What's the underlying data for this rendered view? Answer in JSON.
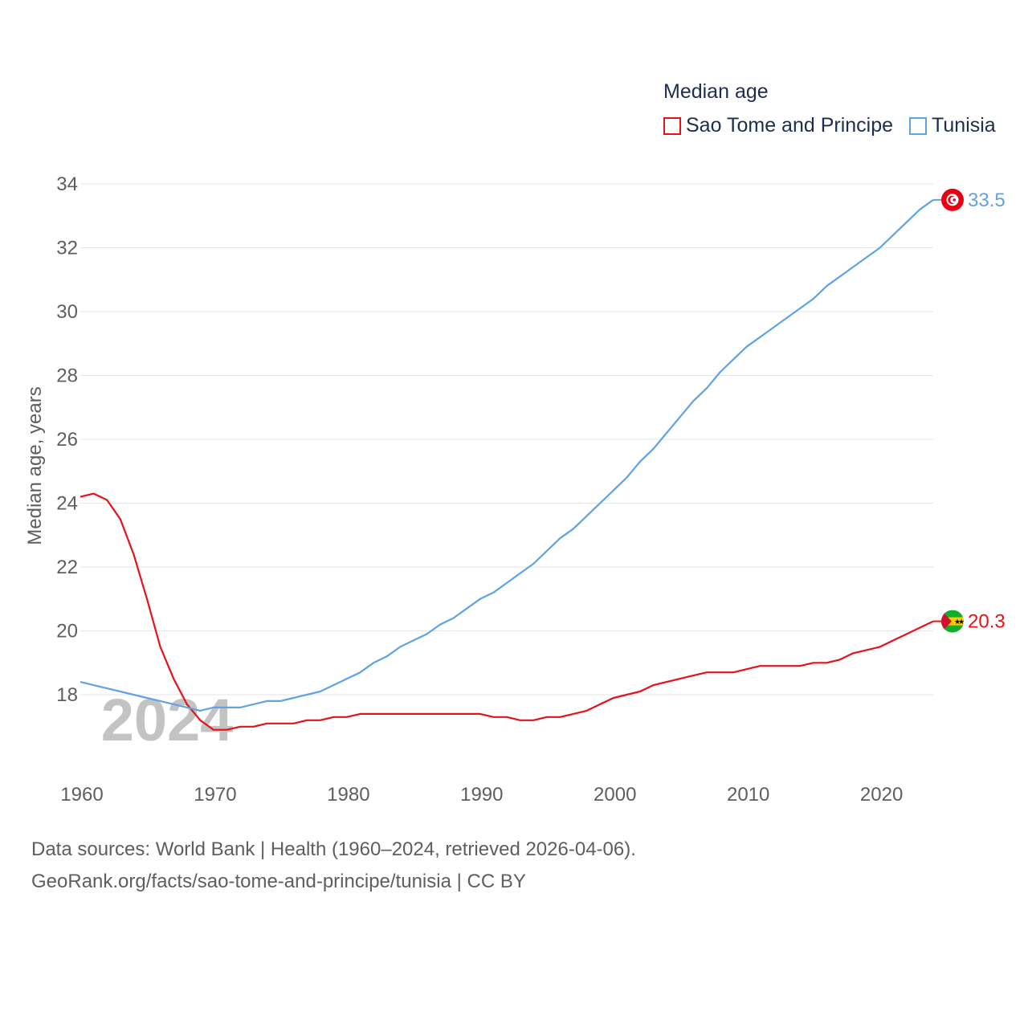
{
  "legend": {
    "title": "Median age",
    "items": [
      {
        "label": "Sao Tome and Principe",
        "color": "#e8111a"
      },
      {
        "label": "Tunisia",
        "color": "#5ea3e4"
      }
    ]
  },
  "footer": {
    "line1": "Data sources: World Bank | Health (1960–2024, retrieved 2026-04-06).",
    "line2": "GeoRank.org/facts/sao-tome-and-principe/tunisia | CC BY"
  },
  "chart_data": {
    "type": "line",
    "title": "Median age",
    "xlabel": "",
    "ylabel": "Median age, years",
    "year_watermark": "2024",
    "xlim": [
      1960,
      2024
    ],
    "ylim": [
      16,
      34.5
    ],
    "xticks": [
      1960,
      1970,
      1980,
      1990,
      2000,
      2010,
      2020
    ],
    "yticks": [
      18,
      20,
      22,
      24,
      26,
      28,
      30,
      32,
      34
    ],
    "grid": true,
    "legend_position": "top-right",
    "series": [
      {
        "name": "Sao Tome and Principe",
        "color": "#e8111a",
        "end_label": "20.3",
        "flag": "sao-tome-flag-icon",
        "x": [
          1960,
          1961,
          1962,
          1963,
          1964,
          1965,
          1966,
          1967,
          1968,
          1969,
          1970,
          1971,
          1972,
          1973,
          1974,
          1975,
          1976,
          1977,
          1978,
          1979,
          1980,
          1981,
          1982,
          1983,
          1984,
          1985,
          1986,
          1987,
          1988,
          1989,
          1990,
          1991,
          1992,
          1993,
          1994,
          1995,
          1996,
          1997,
          1998,
          1999,
          2000,
          2001,
          2002,
          2003,
          2004,
          2005,
          2006,
          2007,
          2008,
          2009,
          2010,
          2011,
          2012,
          2013,
          2014,
          2015,
          2016,
          2017,
          2018,
          2019,
          2020,
          2021,
          2022,
          2023,
          2024
        ],
        "values": [
          24.2,
          24.3,
          24.1,
          23.5,
          22.4,
          21.0,
          19.5,
          18.5,
          17.7,
          17.2,
          16.9,
          16.9,
          17.0,
          17.0,
          17.1,
          17.1,
          17.1,
          17.2,
          17.2,
          17.3,
          17.3,
          17.4,
          17.4,
          17.4,
          17.4,
          17.4,
          17.4,
          17.4,
          17.4,
          17.4,
          17.4,
          17.3,
          17.3,
          17.2,
          17.2,
          17.3,
          17.3,
          17.4,
          17.5,
          17.7,
          17.9,
          18.0,
          18.1,
          18.3,
          18.4,
          18.5,
          18.6,
          18.7,
          18.7,
          18.7,
          18.8,
          18.9,
          18.9,
          18.9,
          18.9,
          19.0,
          19.0,
          19.1,
          19.3,
          19.4,
          19.5,
          19.7,
          19.9,
          20.1,
          20.3
        ]
      },
      {
        "name": "Tunisia",
        "color": "#5ea3e4",
        "end_label": "33.5",
        "flag": "tunisia-flag-icon",
        "x": [
          1960,
          1961,
          1962,
          1963,
          1964,
          1965,
          1966,
          1967,
          1968,
          1969,
          1970,
          1971,
          1972,
          1973,
          1974,
          1975,
          1976,
          1977,
          1978,
          1979,
          1980,
          1981,
          1982,
          1983,
          1984,
          1985,
          1986,
          1987,
          1988,
          1989,
          1990,
          1991,
          1992,
          1993,
          1994,
          1995,
          1996,
          1997,
          1998,
          1999,
          2000,
          2001,
          2002,
          2003,
          2004,
          2005,
          2006,
          2007,
          2008,
          2009,
          2010,
          2011,
          2012,
          2013,
          2014,
          2015,
          2016,
          2017,
          2018,
          2019,
          2020,
          2021,
          2022,
          2023,
          2024
        ],
        "values": [
          18.4,
          18.3,
          18.2,
          18.1,
          18.0,
          17.9,
          17.8,
          17.7,
          17.6,
          17.5,
          17.6,
          17.6,
          17.6,
          17.7,
          17.8,
          17.8,
          17.9,
          18.0,
          18.1,
          18.3,
          18.5,
          18.7,
          19.0,
          19.2,
          19.5,
          19.7,
          19.9,
          20.2,
          20.4,
          20.7,
          21.0,
          21.2,
          21.5,
          21.8,
          22.1,
          22.5,
          22.9,
          23.2,
          23.6,
          24.0,
          24.4,
          24.8,
          25.3,
          25.7,
          26.2,
          26.7,
          27.2,
          27.6,
          28.1,
          28.5,
          28.9,
          29.2,
          29.5,
          29.8,
          30.1,
          30.4,
          30.8,
          31.1,
          31.4,
          31.7,
          32.0,
          32.4,
          32.8,
          33.2,
          33.5
        ]
      }
    ]
  }
}
